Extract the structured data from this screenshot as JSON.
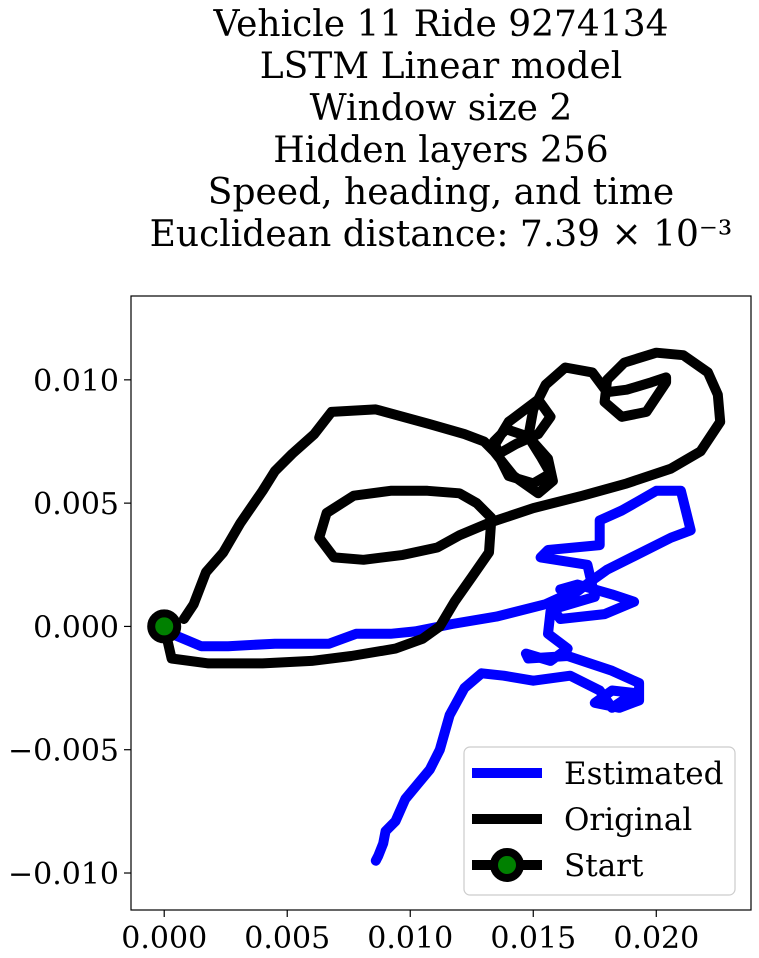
{
  "chart_data": {
    "type": "line",
    "title_lines": [
      "Vehicle 11 Ride 9274134",
      "LSTM Linear model",
      "Window size 2",
      "Hidden layers 256",
      "Speed, heading, and time",
      "Euclidean distance: 7.39 × 10⁻³"
    ],
    "xlim": [
      -0.00135,
      0.02385
    ],
    "ylim": [
      -0.0115,
      0.0134
    ],
    "x_ticks": [
      0.0,
      0.005,
      0.01,
      0.015,
      0.02
    ],
    "x_tick_labels": [
      "0.000",
      "0.005",
      "0.010",
      "0.015",
      "0.020"
    ],
    "y_ticks": [
      -0.01,
      -0.005,
      0.0,
      0.005,
      0.01
    ],
    "y_tick_labels": [
      "−0.010",
      "−0.005",
      "0.000",
      "0.005",
      "0.010"
    ],
    "grid": false,
    "legend_position": "lower-right",
    "series": [
      {
        "name": "Estimated",
        "color": "#0000ff",
        "x": [
          0.0,
          0.0003,
          0.0015,
          0.0026,
          0.0045,
          0.0067,
          0.0078,
          0.0092,
          0.0102,
          0.0117,
          0.0135,
          0.0155,
          0.0166,
          0.0161,
          0.0168,
          0.0182,
          0.0191,
          0.0179,
          0.0161,
          0.0158,
          0.0175,
          0.0172,
          0.0153,
          0.0156,
          0.0177,
          0.0177,
          0.0186,
          0.0193,
          0.02,
          0.021,
          0.0214,
          0.0206,
          0.019,
          0.018,
          0.0173,
          0.0165,
          0.0157,
          0.0156,
          0.0164,
          0.0157,
          0.0147,
          0.0148,
          0.0164,
          0.0182,
          0.0193,
          0.0193,
          0.0185,
          0.0175,
          0.0182,
          0.0191,
          0.0182,
          0.0177,
          0.0165,
          0.015,
          0.0138,
          0.0129,
          0.0122,
          0.0116,
          0.0112,
          0.0108,
          0.0103,
          0.0098,
          0.0094,
          0.009,
          0.0089,
          0.0087,
          0.0086
        ],
        "y": [
          0.0,
          -0.0003,
          -0.0008,
          -0.0008,
          -0.0007,
          -0.0007,
          -0.0003,
          -0.0003,
          -0.0002,
          0.0001,
          0.0004,
          0.0009,
          0.0014,
          0.0015,
          0.0017,
          0.0013,
          0.001,
          0.0005,
          0.0003,
          0.0007,
          0.0012,
          0.0025,
          0.0028,
          0.0031,
          0.0033,
          0.0043,
          0.0047,
          0.0051,
          0.0055,
          0.0055,
          0.0039,
          0.0036,
          0.0028,
          0.0023,
          0.0018,
          0.0012,
          0.0006,
          -0.0003,
          -0.0009,
          -0.0014,
          -0.0011,
          -0.0013,
          -0.0012,
          -0.0018,
          -0.0023,
          -0.003,
          -0.0033,
          -0.0031,
          -0.0026,
          -0.0027,
          -0.0033,
          -0.0026,
          -0.002,
          -0.0022,
          -0.002,
          -0.0019,
          -0.0025,
          -0.0036,
          -0.005,
          -0.0058,
          -0.0064,
          -0.007,
          -0.0079,
          -0.0083,
          -0.0088,
          -0.0093,
          -0.0095
        ]
      },
      {
        "name": "Original",
        "color": "#000000",
        "x": [
          0.0,
          0.0003,
          0.0018,
          0.004,
          0.006,
          0.0076,
          0.0094,
          0.0105,
          0.0112,
          0.0118,
          0.0125,
          0.0132,
          0.0133,
          0.0127,
          0.012,
          0.0107,
          0.0092,
          0.0077,
          0.0066,
          0.0063,
          0.0069,
          0.0081,
          0.0097,
          0.0111,
          0.012,
          0.0132,
          0.015,
          0.017,
          0.0188,
          0.0206,
          0.0218,
          0.0226,
          0.0225,
          0.0221,
          0.0211,
          0.02,
          0.0187,
          0.018,
          0.0179,
          0.0186,
          0.0196,
          0.0204,
          0.0204,
          0.0198,
          0.0188,
          0.018,
          0.0174,
          0.0163,
          0.0155,
          0.015,
          0.0148,
          0.0153,
          0.0157,
          0.015,
          0.014,
          0.0134,
          0.014,
          0.0152,
          0.0157,
          0.0152,
          0.0143,
          0.0136,
          0.0134,
          0.0139,
          0.0148,
          0.0156,
          0.0158,
          0.0152,
          0.0142,
          0.0134,
          0.013,
          0.0122,
          0.0108,
          0.0086,
          0.0068,
          0.0061,
          0.0052,
          0.0045,
          0.004,
          0.0031,
          0.0024,
          0.0017,
          0.0012,
          0.0008
        ],
        "y": [
          0.0,
          -0.0013,
          -0.0015,
          -0.0015,
          -0.0014,
          -0.0012,
          -0.0009,
          -0.0005,
          0.0,
          0.001,
          0.002,
          0.003,
          0.0044,
          0.005,
          0.0054,
          0.0055,
          0.0055,
          0.0053,
          0.0046,
          0.0036,
          0.0028,
          0.0027,
          0.0029,
          0.0032,
          0.0037,
          0.0042,
          0.0048,
          0.0053,
          0.0058,
          0.0064,
          0.0071,
          0.0083,
          0.0094,
          0.0103,
          0.011,
          0.0111,
          0.0107,
          0.01,
          0.0091,
          0.0085,
          0.0087,
          0.0099,
          0.0101,
          0.0099,
          0.0096,
          0.0095,
          0.0103,
          0.0105,
          0.0098,
          0.0088,
          0.0077,
          0.0069,
          0.0062,
          0.0058,
          0.0061,
          0.0073,
          0.0083,
          0.0092,
          0.0085,
          0.0078,
          0.0074,
          0.007,
          0.0075,
          0.008,
          0.0077,
          0.0068,
          0.0059,
          0.0054,
          0.0061,
          0.0071,
          0.0075,
          0.0078,
          0.0082,
          0.0088,
          0.0087,
          0.0078,
          0.007,
          0.0063,
          0.0055,
          0.0042,
          0.003,
          0.0022,
          0.0009,
          0.0003
        ]
      },
      {
        "name": "Start",
        "color": "#000000",
        "marker_fill": "#008000",
        "marker": "circle",
        "x": [
          0.0
        ],
        "y": [
          0.0
        ]
      }
    ],
    "legend": [
      "Estimated",
      "Original",
      "Start"
    ]
  }
}
